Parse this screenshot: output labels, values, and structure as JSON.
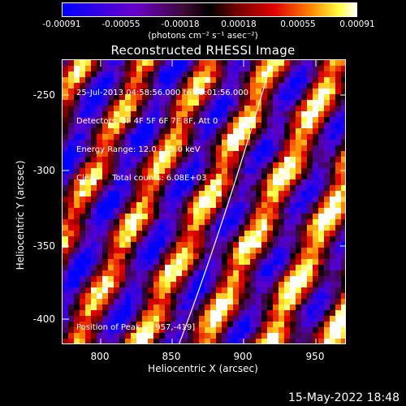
{
  "colorbar": {
    "ticks": [
      "-0.00091",
      "-0.00055",
      "-0.00018",
      "0.00018",
      "0.00055",
      "0.00091"
    ],
    "units_text": "(photons cm⁻² s⁻¹ asec⁻²)",
    "colors": [
      "#0000ff",
      "#6a00c8",
      "#3a0a30",
      "#000000",
      "#7a0000",
      "#e00000",
      "#ff8000",
      "#ffff40",
      "#ffffff"
    ]
  },
  "title": "Reconstructed RHESSI Image",
  "info_lines": [
    "25-Jul-2013 04:58:56.000 to 05:01:56.000",
    "Detectors: 3F 4F 5F 6F 7F 8F, Att 0",
    "Energy Range: 12.0 - 25.0 keV",
    "Clean     Total counts: 6.08E+03"
  ],
  "peak_text": "Position of Peak = [957,-419]",
  "axes": {
    "x_title": "Heliocentric X (arcsec)",
    "y_title": "Heliocentric Y (arcsec)",
    "x_ticks": [
      "800",
      "850",
      "900",
      "950"
    ],
    "y_ticks": [
      "-250",
      "-300",
      "-350",
      "-400"
    ],
    "x_range": [
      775,
      968
    ],
    "y_range": [
      -420,
      -225
    ]
  },
  "date_stamp": "15-May-2022 18:48"
}
